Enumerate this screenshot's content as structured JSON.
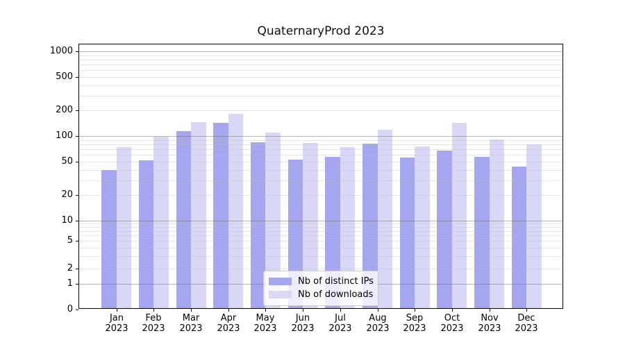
{
  "chart_data": {
    "type": "bar",
    "title": "QuaternaryProd 2023",
    "categories": [
      "Jan",
      "Feb",
      "Mar",
      "Apr",
      "May",
      "Jun",
      "Jul",
      "Aug",
      "Sep",
      "Oct",
      "Nov",
      "Dec"
    ],
    "year": "2023",
    "series": [
      {
        "name": "Nb of distinct IPs",
        "color": "#a6a6f0",
        "values": [
          38,
          50,
          110,
          138,
          82,
          51,
          55,
          78,
          54,
          65,
          55,
          42
        ]
      },
      {
        "name": "Nb of downloads",
        "color": "#d9d9f7",
        "values": [
          72,
          95,
          140,
          175,
          106,
          80,
          72,
          115,
          73,
          138,
          87,
          77
        ]
      }
    ],
    "ylabel": "",
    "xlabel": "",
    "yscale": "symlog",
    "ylim": [
      0,
      1200
    ],
    "yticks": [
      0,
      1,
      2,
      5,
      10,
      20,
      50,
      100,
      200,
      500,
      1000
    ],
    "major_gridlines": [
      1,
      10,
      100,
      1000
    ],
    "minor_gridlines": [
      2,
      3,
      4,
      5,
      6,
      7,
      8,
      9,
      20,
      30,
      40,
      50,
      60,
      70,
      80,
      90,
      200,
      300,
      400,
      500,
      600,
      700,
      800,
      900
    ],
    "grid": true,
    "legend_position": "lower center"
  }
}
